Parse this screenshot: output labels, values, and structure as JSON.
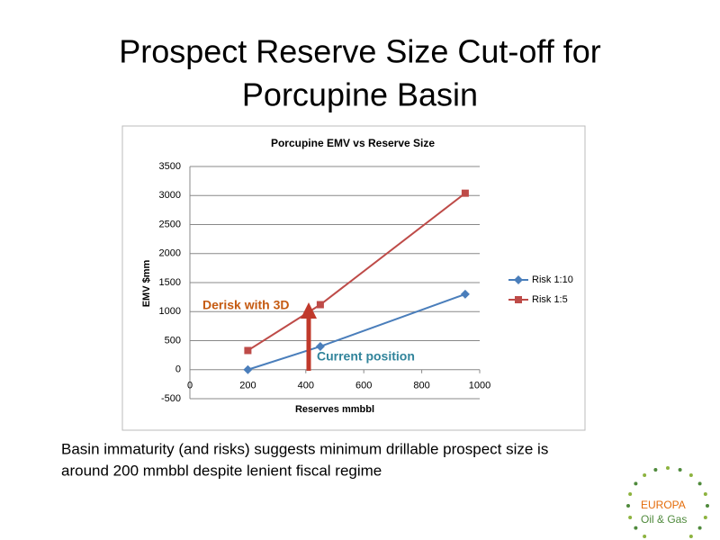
{
  "slide": {
    "title_lines": [
      "Prospect Reserve Size Cut-off for",
      "Porcupine Basin"
    ],
    "caption_lines": [
      "Basin immaturity (and risks) suggests minimum drillable prospect size is",
      "around 200 mmbbl despite lenient fiscal regime"
    ],
    "logo": {
      "line1": "EUROPA",
      "line2": "Oil & Gas"
    }
  },
  "chart_data": {
    "type": "line",
    "title": "Porcupine EMV vs Reserve Size",
    "x_label": "Reserves mmbbl",
    "y_label": "EMV $mm",
    "x": [
      200,
      450,
      950
    ],
    "series": [
      {
        "name": "Risk 1:10",
        "color": "#4a7ebb",
        "marker": "diamond",
        "values": [
          0,
          400,
          1300
        ]
      },
      {
        "name": "Risk 1:5",
        "color": "#be4b48",
        "marker": "square",
        "values": [
          330,
          1120,
          3040
        ]
      }
    ],
    "xlim": [
      0,
      1000
    ],
    "xticks": [
      0,
      200,
      400,
      600,
      800,
      1000
    ],
    "ylim": [
      -500,
      3500
    ],
    "yticks": [
      -500,
      0,
      500,
      1000,
      1500,
      2000,
      2500,
      3000,
      3500
    ],
    "grid": true,
    "legend": "right",
    "annotations": [
      {
        "text": "Derisk with 3D",
        "color": "#c55a11"
      },
      {
        "text": "Current position",
        "color": "#31849b"
      }
    ]
  }
}
